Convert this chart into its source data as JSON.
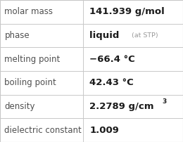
{
  "rows": [
    {
      "label": "molar mass",
      "type": "plain",
      "value": "141.939 g/mol"
    },
    {
      "label": "phase",
      "type": "phase",
      "value": "liquid"
    },
    {
      "label": "melting point",
      "type": "plain",
      "value": "−66.4 °C"
    },
    {
      "label": "boiling point",
      "type": "plain",
      "value": "42.43 °C"
    },
    {
      "label": "density",
      "type": "density",
      "value": "2.2789 g/cm"
    },
    {
      "label": "dielectric constant",
      "type": "plain",
      "value": "1.009"
    }
  ],
  "col_split": 0.455,
  "bg_color": "#ffffff",
  "border_color": "#c8c8c8",
  "label_color": "#505050",
  "value_color": "#1a1a1a",
  "small_color": "#999999",
  "label_fontsize": 8.5,
  "value_fontsize": 9.5,
  "small_fontsize": 6.8,
  "super_fontsize": 6.5
}
